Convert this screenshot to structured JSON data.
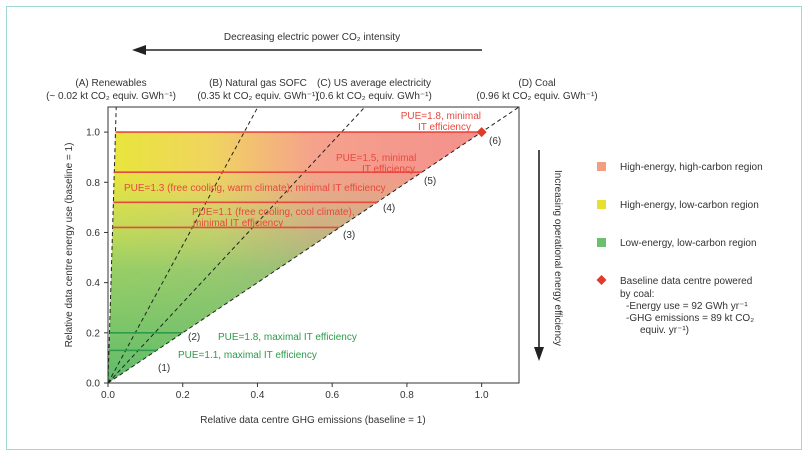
{
  "chart_data": {
    "type": "area",
    "xlabel": "Relative data centre GHG emissions (baseline = 1)",
    "ylabel": "Relative data centre energy use (baseline = 1)",
    "xlim": [
      0,
      1.1
    ],
    "ylim": [
      0,
      1.1
    ],
    "xticks": [
      "0.0",
      "0.2",
      "0.4",
      "0.6",
      "0.8",
      "1.0"
    ],
    "yticks": [
      "0.0",
      "0.2",
      "0.4",
      "0.6",
      "0.8",
      "1.0"
    ],
    "top_arrow_label": "Decreasing electric power CO₂ intensity",
    "right_arrow_label": "Increasing operational energy efficiency",
    "intensity_lines": [
      {
        "label": "(A) Renewables",
        "sub": "(~ 0.02 kt CO₂ equiv. GWh⁻¹)",
        "x_at_y1": 0.02
      },
      {
        "label": "(B) Natural gas SOFC",
        "sub": "(0.35 kt CO₂ equiv. GWh⁻¹)",
        "x_at_y1": 0.3646
      },
      {
        "label": "(C) US average electricity",
        "sub": "(0.6 kt CO₂ equiv. GWh⁻¹)",
        "x_at_y1": 0.625
      },
      {
        "label": "(D) Coal",
        "sub": "(0.96 kt CO₂ equiv. GWh⁻¹)",
        "x_at_y1": 1.0
      }
    ],
    "scenarios": [
      {
        "num": "(6)",
        "y": 1.0,
        "color": "red",
        "lines": [
          "PUE=1.8, minimal",
          "IT efficiency"
        ]
      },
      {
        "num": "(5)",
        "y": 0.84,
        "color": "red",
        "lines": [
          "PUE=1.5, minimal",
          "IT efficiency"
        ]
      },
      {
        "num": "(4)",
        "y": 0.72,
        "color": "red",
        "lines": [
          "PUE=1.3 (free cooling, warm climate), minimal IT efficiency"
        ]
      },
      {
        "num": "(3)",
        "y": 0.62,
        "color": "red",
        "lines": [
          "PUE=1.1 (free cooling, cool climate),",
          "minimal IT efficiency"
        ]
      },
      {
        "num": "(2)",
        "y": 0.2,
        "color": "green",
        "lines": [
          "PUE=1.8, maximal IT efficiency"
        ]
      },
      {
        "num": "(1)",
        "y": 0.13,
        "color": "green",
        "lines": [
          "PUE=1.1, maximal IT efficiency"
        ]
      }
    ],
    "baseline_point": {
      "x": 1.0,
      "y": 1.0
    }
  },
  "legend": [
    {
      "label": "High-energy, high-carbon region",
      "color": "#f0a080",
      "shape": "square"
    },
    {
      "label": "High-energy, low-carbon region",
      "color": "#e8e030",
      "shape": "square"
    },
    {
      "label": "Low-energy, low-carbon region",
      "color": "#6cbf6c",
      "shape": "square"
    },
    {
      "label": "Baseline data centre powered",
      "color": "#e03a2a",
      "shape": "diamond",
      "extra": [
        "by coal:",
        "-Energy use = 92 GWh yr⁻¹",
        "-GHG emissions = 89 kt CO₂",
        "equiv. yr⁻¹)"
      ]
    }
  ],
  "colors": {
    "red_line": "#e8493f",
    "green_line": "#2e9a4a",
    "axis": "#333333"
  }
}
